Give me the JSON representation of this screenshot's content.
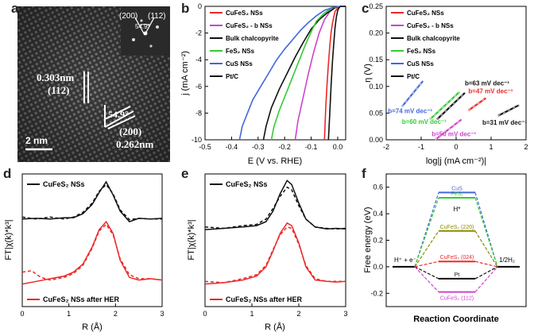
{
  "panel_letters": [
    "a",
    "b",
    "c",
    "d",
    "e",
    "f"
  ],
  "colors": {
    "red": "#ee2828",
    "magenta": "#cc44cc",
    "black": "#111111",
    "green": "#33cc33",
    "blue": "#4466dd",
    "olive": "#8b8b00",
    "teal": "#2a9a8a"
  },
  "panel_a": {
    "labels": {
      "d_0303": "0.303nm",
      "plane_112": "(112)",
      "angle_left": "54.9°",
      "plane_200": "(200)",
      "d_0262": "0.262nm",
      "scale": "2 nm",
      "fft_200": "(200)",
      "fft_112": "(112)",
      "fft_angle": "54.9°"
    }
  },
  "chart_data": [
    {
      "id": "b",
      "type": "line",
      "xlabel": "E (V vs. RHE)",
      "ylabel": "j (mA cm⁻²)",
      "xlim": [
        -0.5,
        0.03
      ],
      "ylim": [
        -10,
        0
      ],
      "xticks": [
        "-0.5",
        "-0.4",
        "-0.3",
        "-0.2",
        "-0.1",
        "0.0"
      ],
      "yticks": [
        "0",
        "-2",
        "-4",
        "-6",
        "-8",
        "-10"
      ],
      "legend": [
        "CuFeS₂ NSs",
        "CuFeS₂ - b NSs",
        "Bulk chalcopyrite",
        "FeS₂ NSs",
        "CuS NSs",
        "Pt/C"
      ],
      "series": [
        {
          "name": "CuFeS₂ NSs",
          "color": "#ee2828",
          "x": [
            -0.05,
            -0.045,
            -0.04,
            -0.035,
            -0.03,
            -0.025,
            -0.02,
            -0.015,
            -0.01,
            0.0,
            0.01,
            0.02,
            0.03
          ],
          "y": [
            -10,
            -7.5,
            -5.8,
            -4.3,
            -3.0,
            -2.0,
            -1.3,
            -0.8,
            -0.4,
            -0.1,
            0,
            0,
            0
          ]
        },
        {
          "name": "CuFeS₂ - b NSs",
          "color": "#cc44cc",
          "x": [
            -0.16,
            -0.15,
            -0.13,
            -0.11,
            -0.09,
            -0.07,
            -0.05,
            -0.03,
            -0.01,
            0.01,
            0.03
          ],
          "y": [
            -10,
            -8.6,
            -6.8,
            -5.0,
            -3.4,
            -2.0,
            -1.0,
            -0.4,
            -0.1,
            0,
            0
          ]
        },
        {
          "name": "Bulk chalcopyrite",
          "color": "#111111",
          "x": [
            -0.28,
            -0.27,
            -0.25,
            -0.22,
            -0.19,
            -0.16,
            -0.13,
            -0.1,
            -0.07,
            -0.04,
            -0.01,
            0.01,
            0.03
          ],
          "y": [
            -10,
            -9.0,
            -7.6,
            -6.2,
            -5.0,
            -3.8,
            -2.7,
            -1.7,
            -1.0,
            -0.5,
            -0.1,
            0,
            0
          ]
        },
        {
          "name": "FeS₂ NSs",
          "color": "#33cc33",
          "x": [
            -0.25,
            -0.24,
            -0.22,
            -0.2,
            -0.18,
            -0.16,
            -0.14,
            -0.12,
            -0.1,
            -0.08,
            -0.05,
            -0.02,
            0.01,
            0.03
          ],
          "y": [
            -10,
            -9.0,
            -7.8,
            -6.8,
            -5.8,
            -4.8,
            -3.8,
            -2.8,
            -1.9,
            -1.1,
            -0.5,
            -0.1,
            0,
            0
          ]
        },
        {
          "name": "CuS NSs",
          "color": "#4466dd",
          "x": [
            -0.37,
            -0.36,
            -0.34,
            -0.32,
            -0.29,
            -0.26,
            -0.23,
            -0.2,
            -0.17,
            -0.14,
            -0.11,
            -0.08,
            -0.05,
            -0.02,
            0.01,
            0.03
          ],
          "y": [
            -10,
            -9.0,
            -8.0,
            -7.0,
            -6.0,
            -5.0,
            -4.0,
            -3.2,
            -2.5,
            -1.8,
            -1.2,
            -0.7,
            -0.3,
            -0.1,
            0,
            0
          ]
        },
        {
          "name": "Pt/C",
          "color": "#111111",
          "x": [
            -0.035,
            -0.03,
            -0.025,
            -0.02,
            -0.015,
            -0.01,
            -0.005,
            0.0,
            0.005,
            0.01,
            0.03
          ],
          "y": [
            -10,
            -8.0,
            -6.0,
            -4.2,
            -2.8,
            -1.6,
            -0.8,
            -0.3,
            -0.1,
            0,
            0
          ]
        }
      ]
    },
    {
      "id": "c",
      "type": "line",
      "xlabel": "log|j (mA cm⁻²)|",
      "ylabel": "η (V)",
      "xlim": [
        -2,
        2
      ],
      "ylim": [
        0,
        0.25
      ],
      "xticks": [
        "-2",
        "-1",
        "0",
        "1",
        "2"
      ],
      "yticks": [
        "0.00",
        "0.05",
        "0.10",
        "0.15",
        "0.20",
        "0.25"
      ],
      "legend": [
        "CuFeS₂ NSs",
        "CuFeS₂ - b NSs",
        "Bulk chalcopyrite",
        "FeS₂ NSs",
        "CuS NSs",
        "Pt/C"
      ],
      "series": [
        {
          "name": "CuS NSs",
          "color": "#4466dd",
          "x": [
            -1.55,
            -0.95
          ],
          "y": [
            0.062,
            0.11
          ]
        },
        {
          "name": "FeS₂ NSs",
          "color": "#33cc33",
          "x": [
            -0.75,
            0.1
          ],
          "y": [
            0.038,
            0.09
          ]
        },
        {
          "name": "Bulk chalcopyrite",
          "color": "#111111",
          "x": [
            -0.55,
            0.25
          ],
          "y": [
            0.038,
            0.088
          ]
        },
        {
          "name": "CuFeS₂ - b NSs",
          "color": "#cc44cc",
          "x": [
            -0.6,
            0.15
          ],
          "y": [
            0.0,
            0.038
          ]
        },
        {
          "name": "CuFeS₂ NSs",
          "color": "#ee2828",
          "x": [
            0.35,
            0.85
          ],
          "y": [
            0.055,
            0.078
          ]
        },
        {
          "name": "Pt/C",
          "color": "#111111",
          "x": [
            1.2,
            1.8
          ],
          "y": [
            0.045,
            0.065
          ]
        }
      ],
      "annotations": [
        {
          "text": "b=63 mV dec⁻¹",
          "color": "#111111",
          "x": 0.25,
          "y": 0.102
        },
        {
          "text": "b=47 mV dec⁻¹",
          "color": "#ee2828",
          "x": 0.35,
          "y": 0.087
        },
        {
          "text": "b=74 mV dec⁻¹",
          "color": "#4466dd",
          "x": -1.95,
          "y": 0.05
        },
        {
          "text": "b=60 mV dec⁻¹",
          "color": "#33cc33",
          "x": -1.55,
          "y": 0.03
        },
        {
          "text": "b=31 mV dec⁻¹",
          "color": "#111111",
          "x": 0.75,
          "y": 0.028
        },
        {
          "text": "b=50 mV dec⁻¹",
          "color": "#cc44cc",
          "x": -0.7,
          "y": 0.007
        }
      ]
    },
    {
      "id": "d",
      "type": "line",
      "xlabel": "R (Å)",
      "ylabel": "FT|χ(k)*k³|",
      "xlim": [
        0,
        3
      ],
      "ylim": [
        0,
        1
      ],
      "xticks": [
        "0",
        "1",
        "2",
        "3"
      ],
      "legend": [
        "CuFeS₂ NSs",
        "CuFeS₂ NSs after HER"
      ],
      "series": [
        {
          "name": "CuFeS₂ NSs",
          "color": "#111111",
          "style": "solid",
          "x": [
            0,
            0.3,
            0.6,
            0.9,
            1.1,
            1.3,
            1.5,
            1.65,
            1.8,
            1.95,
            2.1,
            2.3,
            2.5,
            2.75,
            3.0
          ],
          "y": [
            0.66,
            0.665,
            0.66,
            0.67,
            0.67,
            0.7,
            0.77,
            0.86,
            0.94,
            0.84,
            0.72,
            0.64,
            0.665,
            0.66,
            0.665
          ]
        },
        {
          "name": "CuFeS₂ NSs fit",
          "color": "#111111",
          "style": "dashed",
          "x": [
            0,
            0.3,
            0.6,
            0.9,
            1.1,
            1.3,
            1.5,
            1.65,
            1.8,
            1.95,
            2.1,
            2.3,
            2.5,
            2.75,
            3.0
          ],
          "y": [
            0.675,
            0.66,
            0.675,
            0.66,
            0.675,
            0.71,
            0.78,
            0.87,
            0.92,
            0.85,
            0.73,
            0.655,
            0.665,
            0.66,
            0.66
          ]
        },
        {
          "name": "CuFeS₂ NSs after HER",
          "color": "#ee2828",
          "style": "solid",
          "x": [
            0,
            0.3,
            0.6,
            0.9,
            1.1,
            1.3,
            1.5,
            1.65,
            1.8,
            1.95,
            2.1,
            2.3,
            2.5,
            2.75,
            3.0
          ],
          "y": [
            0.17,
            0.19,
            0.21,
            0.23,
            0.26,
            0.32,
            0.45,
            0.58,
            0.64,
            0.55,
            0.35,
            0.22,
            0.2,
            0.21,
            0.2
          ]
        },
        {
          "name": "CuFeS₂ NSs after HER fit",
          "color": "#ee2828",
          "style": "dashed",
          "x": [
            0,
            0.2,
            0.4,
            0.6,
            0.9,
            1.1,
            1.3,
            1.5,
            1.65,
            1.8,
            1.95,
            2.1,
            2.3,
            2.5,
            2.75,
            3.0
          ],
          "y": [
            0.26,
            0.27,
            0.22,
            0.2,
            0.22,
            0.25,
            0.31,
            0.44,
            0.57,
            0.62,
            0.54,
            0.36,
            0.24,
            0.21,
            0.21,
            0.2
          ]
        }
      ]
    },
    {
      "id": "e",
      "type": "line",
      "xlabel": "R (Å)",
      "ylabel": "FT|χ(k)*k³|",
      "xlim": [
        0,
        3
      ],
      "ylim": [
        0,
        1
      ],
      "xticks": [
        "0",
        "1",
        "2",
        "3"
      ],
      "legend": [
        "CuFeS₂ NSs",
        "CuFeS₂ NSs after HER"
      ],
      "series": [
        {
          "name": "CuFeS₂ NSs",
          "color": "#111111",
          "style": "solid",
          "x": [
            0,
            0.4,
            0.8,
            1.1,
            1.3,
            1.45,
            1.6,
            1.75,
            1.85,
            2.0,
            2.15,
            2.35,
            2.6,
            2.8,
            3.0
          ],
          "y": [
            0.58,
            0.59,
            0.6,
            0.61,
            0.64,
            0.72,
            0.85,
            0.95,
            0.92,
            0.78,
            0.66,
            0.6,
            0.585,
            0.59,
            0.585
          ]
        },
        {
          "name": "CuFeS₂ NSs fit",
          "color": "#111111",
          "style": "dashed",
          "x": [
            0,
            0.4,
            0.8,
            1.1,
            1.3,
            1.45,
            1.6,
            1.75,
            1.85,
            2.0,
            2.15,
            2.35,
            2.6,
            2.8,
            3.0
          ],
          "y": [
            0.6,
            0.59,
            0.61,
            0.62,
            0.66,
            0.74,
            0.83,
            0.9,
            0.88,
            0.76,
            0.66,
            0.6,
            0.59,
            0.585,
            0.59
          ]
        },
        {
          "name": "CuFeS₂ NSs after HER",
          "color": "#ee2828",
          "style": "solid",
          "x": [
            0,
            0.4,
            0.8,
            1.1,
            1.3,
            1.45,
            1.6,
            1.75,
            1.85,
            2.0,
            2.15,
            2.35,
            2.6,
            2.8,
            3.0
          ],
          "y": [
            0.17,
            0.18,
            0.2,
            0.23,
            0.3,
            0.42,
            0.55,
            0.63,
            0.61,
            0.48,
            0.3,
            0.2,
            0.19,
            0.185,
            0.19
          ]
        },
        {
          "name": "CuFeS₂ NSs after HER fit",
          "color": "#ee2828",
          "style": "dashed",
          "x": [
            0,
            0.4,
            0.8,
            1.1,
            1.3,
            1.45,
            1.6,
            1.75,
            1.85,
            2.0,
            2.15,
            2.35,
            2.6,
            2.8,
            3.0
          ],
          "y": [
            0.19,
            0.18,
            0.21,
            0.24,
            0.31,
            0.43,
            0.54,
            0.6,
            0.59,
            0.47,
            0.31,
            0.21,
            0.19,
            0.19,
            0.19
          ]
        }
      ]
    },
    {
      "id": "f",
      "type": "diagram",
      "xlabel": "Reaction Coordinate",
      "ylabel": "Free energy (eV)",
      "ylim": [
        -0.3,
        0.7
      ],
      "yticks": [
        "0.6",
        "0.4",
        "0.2",
        "0.0",
        "-0.2"
      ],
      "start_label": "H⁺ + e⁻",
      "end_label": "1/2H₂",
      "intermediate_label": "H*",
      "levels": [
        {
          "name": "CuS",
          "value": 0.56,
          "color": "#4466dd"
        },
        {
          "name": "FeS₂",
          "value": 0.52,
          "color": "#33cc33"
        },
        {
          "name": "CuFeS₂ (220)",
          "value": 0.27,
          "color": "#8b8b00"
        },
        {
          "name": "CuFeS₂ (024)",
          "value": 0.04,
          "color": "#ee2828"
        },
        {
          "name": "Pt",
          "value": -0.09,
          "color": "#111111"
        },
        {
          "name": "CuFeS₂ (112)",
          "value": -0.19,
          "color": "#cc44cc"
        }
      ]
    }
  ]
}
